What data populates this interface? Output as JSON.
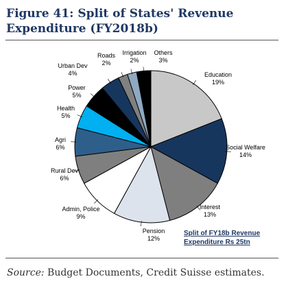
{
  "figure": {
    "title_line1": "Figure 41: Split of States' Revenue",
    "title_line2": "Expenditure (FY2018b)"
  },
  "chart_data": {
    "type": "pie",
    "subtitle_line1": "Split of FY18b Revenue",
    "subtitle_line2": "Expenditure Rs 25tn",
    "start": "12 o'clock",
    "direction": "clockwise",
    "slices": [
      {
        "label": "Education",
        "value": 19,
        "display": "19%",
        "color": "#c8c8c8"
      },
      {
        "label": "Social Welfare",
        "value": 14,
        "display": "14%",
        "color": "#17365d"
      },
      {
        "label": "Interest",
        "value": 13,
        "display": "13%",
        "color": "#7f7f7f"
      },
      {
        "label": "Pension",
        "value": 12,
        "display": "12%",
        "color": "#dce3ec"
      },
      {
        "label": "Admin, Police",
        "value": 9,
        "display": "9%",
        "color": "#ffffff"
      },
      {
        "label": "Rural Dev",
        "value": 6,
        "display": "6%",
        "color": "#7f7f7f"
      },
      {
        "label": "Agri",
        "value": 6,
        "display": "6%",
        "color": "#2e5f8a"
      },
      {
        "label": "Health",
        "value": 5,
        "display": "5%",
        "color": "#00b0f0"
      },
      {
        "label": "Power",
        "value": 5,
        "display": "5%",
        "color": "#000000"
      },
      {
        "label": "Urban Dev",
        "value": 4,
        "display": "4%",
        "color": "#17365d"
      },
      {
        "label": "Roads",
        "value": 2,
        "display": "2%",
        "color": "#808080"
      },
      {
        "label": "Irrigation",
        "value": 2,
        "display": "2%",
        "color": "#8ea9c1"
      },
      {
        "label": "Others",
        "value": 3,
        "display": "3%",
        "color": "#000000"
      }
    ]
  },
  "source": {
    "prefix": "Source:",
    "text": " Budget Documents, Credit Suisse estimates."
  }
}
